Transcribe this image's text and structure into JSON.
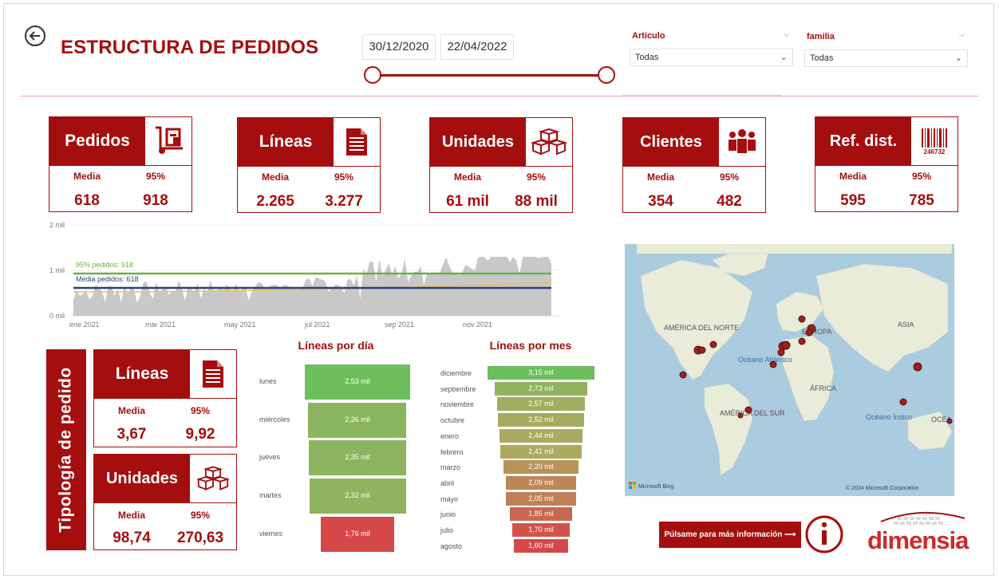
{
  "header": {
    "title": "ESTRUCTURA DE PEDIDOS",
    "date_from": "30/12/2020",
    "date_to": "22/04/2022"
  },
  "filters": {
    "articulo": {
      "label": "Articulo",
      "value": "Todas"
    },
    "familia": {
      "label": "familia",
      "value": "Todas"
    }
  },
  "kpis": [
    {
      "title": "Pedidos",
      "icon": "hand-truck-icon",
      "media_label": "Media",
      "p95_label": "95%",
      "media": "618",
      "p95": "918"
    },
    {
      "title": "Líneas",
      "icon": "document-icon",
      "media_label": "Media",
      "p95_label": "95%",
      "media": "2.265",
      "p95": "3.277"
    },
    {
      "title": "Unidades",
      "icon": "boxes-icon",
      "media_label": "Media",
      "p95_label": "95%",
      "media": "61 mil",
      "p95": "88 mil"
    },
    {
      "title": "Clientes",
      "icon": "people-icon",
      "media_label": "Media",
      "p95_label": "95%",
      "media": "354",
      "p95": "482"
    },
    {
      "title": "Ref. dist.",
      "icon": "barcode-icon",
      "media_label": "Media",
      "p95_label": "95%",
      "media": "595",
      "p95": "785"
    }
  ],
  "barcode_number": "246732",
  "timeseries": {
    "y_ticks": [
      "2 mil",
      "1 mil",
      "0 mil"
    ],
    "x_ticks": [
      "ene 2021",
      "mar 2021",
      "may 2021",
      "jul 2021",
      "sep 2021",
      "nov 2021"
    ],
    "p95_label": "95% pedidos: 918",
    "media_label": "Media pedidos: 618",
    "colors": {
      "area": "#c8c8c8",
      "p95": "#6ab04c",
      "media": "#2e3f7c",
      "trend": "#e8c060"
    }
  },
  "tipologia": {
    "title": "Tipología de pedido",
    "lineas": {
      "title": "Líneas",
      "media_label": "Media",
      "p95_label": "95%",
      "media": "3,67",
      "p95": "9,92"
    },
    "unidades": {
      "title": "Unidades",
      "media_label": "Media",
      "p95_label": "95%",
      "media": "98,74",
      "p95": "270,63"
    }
  },
  "chart_data": [
    {
      "type": "bar",
      "title": "Líneas por día",
      "categories": [
        "lunes",
        "miércoles",
        "jueves",
        "martes",
        "viernes"
      ],
      "values": [
        2.53,
        2.36,
        2.35,
        2.32,
        1.76
      ],
      "labels": [
        "2,53 mil",
        "2,36 mil",
        "2,35 mil",
        "2,32 mil",
        "1,76 mil"
      ],
      "unit": "mil"
    },
    {
      "type": "bar",
      "title": "Líneas por mes",
      "categories": [
        "diciembre",
        "septiembre",
        "noviembre",
        "octubre",
        "enero",
        "febrero",
        "marzo",
        "abril",
        "mayo",
        "junio",
        "julio",
        "agosto"
      ],
      "values": [
        3.15,
        2.73,
        2.57,
        2.52,
        2.44,
        2.41,
        2.2,
        2.09,
        2.05,
        1.85,
        1.7,
        1.6
      ],
      "labels": [
        "3,15 mil",
        "2,73 mil",
        "2,57 mil",
        "2,52 mil",
        "2,44 mil",
        "2,41 mil",
        "2,20 mil",
        "2,09 mil",
        "2,05 mil",
        "1,85 mil",
        "1,70 mil",
        "1,60 mil"
      ],
      "unit": "mil"
    }
  ],
  "map": {
    "labels": [
      "AMÉRICA DEL NORTE",
      "EUROPA",
      "ASIA",
      "Océano Atlántico",
      "ÁFRICA",
      "AMÉRICA DEL SUR",
      "Océano Índico",
      "OCEA"
    ],
    "attribution_left": "Microsoft Bing",
    "attribution_right": "© 2024 Microsoft Corporation"
  },
  "footer": {
    "info_button": "Púlsame para más información ⟶",
    "brand": "dimensia"
  }
}
